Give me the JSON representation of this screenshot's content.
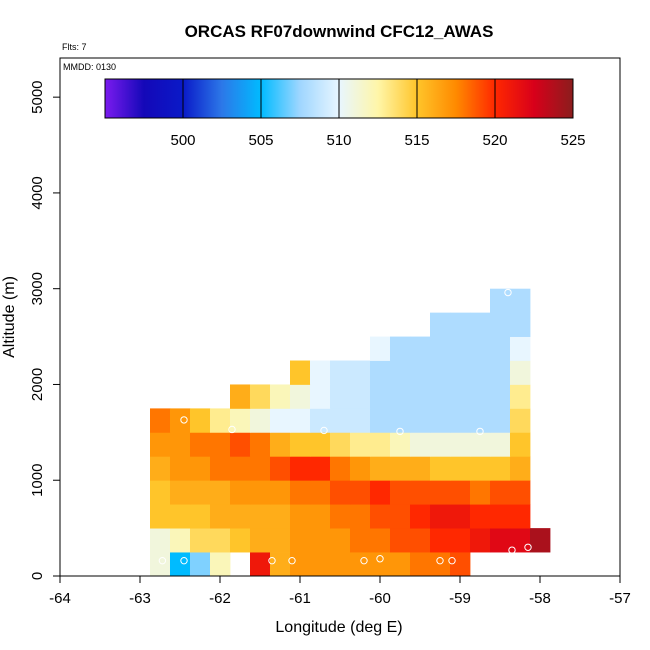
{
  "chart_data": {
    "type": "heatmap",
    "title": "ORCAS RF07downwind CFC12_AWAS",
    "flights_note": "Flts: 7",
    "date_note": "MMDD: 0130",
    "xlabel": "Longitude (deg E)",
    "ylabel": "Altitude (m)",
    "xlim": [
      -64,
      -57
    ],
    "ylim": [
      0,
      5200
    ],
    "x_ticks": [
      -64,
      -63,
      -62,
      -61,
      -60,
      -59,
      -58,
      -57
    ],
    "y_ticks": [
      0,
      1000,
      2000,
      3000,
      4000,
      5000
    ],
    "cell_width_deg": 0.25,
    "cell_height_m": 250,
    "colorbar": {
      "range": [
        495,
        525
      ],
      "ticks": [
        500,
        505,
        510,
        515,
        520,
        525
      ],
      "stops": [
        "#7b1bef",
        "#1408b8",
        "#0a1ac8",
        "#2c78e8",
        "#00bbff",
        "#9fd6ff",
        "#e8f6ff",
        "#fff6a8",
        "#ffc52a",
        "#ff8a00",
        "#ff2800",
        "#d8001a",
        "#8b1d1d"
      ]
    },
    "cells": [
      [
        -62.75,
        0,
        511
      ],
      [
        -62.5,
        0,
        505
      ],
      [
        -62.25,
        0,
        507
      ],
      [
        -62,
        0,
        512
      ],
      [
        -61.5,
        0,
        521
      ],
      [
        -61.25,
        0,
        516
      ],
      [
        -61,
        0,
        517
      ],
      [
        -60.75,
        0,
        517
      ],
      [
        -60.5,
        0,
        517
      ],
      [
        -60.25,
        0,
        517
      ],
      [
        -60,
        0,
        517
      ],
      [
        -59.75,
        0,
        517
      ],
      [
        -59.5,
        0,
        518
      ],
      [
        -59.25,
        0,
        518
      ],
      [
        -59,
        0,
        519
      ],
      [
        -62.75,
        250,
        511
      ],
      [
        -62.5,
        250,
        512
      ],
      [
        -62.25,
        250,
        514
      ],
      [
        -62,
        250,
        514
      ],
      [
        -61.75,
        250,
        515
      ],
      [
        -61.5,
        250,
        516
      ],
      [
        -61.25,
        250,
        516
      ],
      [
        -61,
        250,
        517
      ],
      [
        -60.75,
        250,
        517
      ],
      [
        -60.5,
        250,
        517
      ],
      [
        -60.25,
        250,
        518
      ],
      [
        -60,
        250,
        518
      ],
      [
        -59.75,
        250,
        519
      ],
      [
        -59.5,
        250,
        519
      ],
      [
        -59.25,
        250,
        520
      ],
      [
        -59,
        250,
        520
      ],
      [
        -58.75,
        250,
        521
      ],
      [
        -58.5,
        250,
        522
      ],
      [
        -58.25,
        250,
        522
      ],
      [
        -58,
        250,
        524
      ],
      [
        -62.75,
        500,
        515
      ],
      [
        -62.5,
        500,
        515
      ],
      [
        -62.25,
        500,
        515
      ],
      [
        -62,
        500,
        516
      ],
      [
        -61.75,
        500,
        516
      ],
      [
        -61.5,
        500,
        516
      ],
      [
        -61.25,
        500,
        516
      ],
      [
        -61,
        500,
        517
      ],
      [
        -60.75,
        500,
        517
      ],
      [
        -60.5,
        500,
        518
      ],
      [
        -60.25,
        500,
        518
      ],
      [
        -60,
        500,
        519
      ],
      [
        -59.75,
        500,
        519
      ],
      [
        -59.5,
        500,
        520
      ],
      [
        -59.25,
        500,
        521
      ],
      [
        -59,
        500,
        521
      ],
      [
        -58.75,
        500,
        520
      ],
      [
        -58.5,
        500,
        520
      ],
      [
        -58.25,
        500,
        520
      ],
      [
        -62.75,
        750,
        515
      ],
      [
        -62.5,
        750,
        516
      ],
      [
        -62.25,
        750,
        516
      ],
      [
        -62,
        750,
        516
      ],
      [
        -61.75,
        750,
        517
      ],
      [
        -61.5,
        750,
        517
      ],
      [
        -61.25,
        750,
        517
      ],
      [
        -61,
        750,
        518
      ],
      [
        -60.75,
        750,
        518
      ],
      [
        -60.5,
        750,
        519
      ],
      [
        -60.25,
        750,
        519
      ],
      [
        -60,
        750,
        520
      ],
      [
        -59.75,
        750,
        519
      ],
      [
        -59.5,
        750,
        519
      ],
      [
        -59.25,
        750,
        519
      ],
      [
        -59,
        750,
        519
      ],
      [
        -58.75,
        750,
        518
      ],
      [
        -58.5,
        750,
        519
      ],
      [
        -58.25,
        750,
        519
      ],
      [
        -62.75,
        1000,
        516
      ],
      [
        -62.5,
        1000,
        517
      ],
      [
        -62.25,
        1000,
        517
      ],
      [
        -62,
        1000,
        518
      ],
      [
        -61.75,
        1000,
        518
      ],
      [
        -61.5,
        1000,
        518
      ],
      [
        -61.25,
        1000,
        519
      ],
      [
        -61,
        1000,
        520
      ],
      [
        -60.75,
        1000,
        520
      ],
      [
        -60.5,
        1000,
        518
      ],
      [
        -60.25,
        1000,
        517
      ],
      [
        -60,
        1000,
        516
      ],
      [
        -59.75,
        1000,
        516
      ],
      [
        -59.5,
        1000,
        516
      ],
      [
        -59.25,
        1000,
        515
      ],
      [
        -59,
        1000,
        515
      ],
      [
        -58.75,
        1000,
        515
      ],
      [
        -58.5,
        1000,
        515
      ],
      [
        -58.25,
        1000,
        516
      ],
      [
        -62.75,
        1250,
        517
      ],
      [
        -62.5,
        1250,
        517
      ],
      [
        -62.25,
        1250,
        518
      ],
      [
        -62,
        1250,
        518
      ],
      [
        -61.75,
        1250,
        519
      ],
      [
        -61.5,
        1250,
        518
      ],
      [
        -61.25,
        1250,
        516
      ],
      [
        -61,
        1250,
        515
      ],
      [
        -60.75,
        1250,
        515
      ],
      [
        -60.5,
        1250,
        514
      ],
      [
        -60.25,
        1250,
        513
      ],
      [
        -60,
        1250,
        513
      ],
      [
        -59.75,
        1250,
        512
      ],
      [
        -59.5,
        1250,
        511
      ],
      [
        -59.25,
        1250,
        511
      ],
      [
        -59,
        1250,
        511
      ],
      [
        -58.75,
        1250,
        511
      ],
      [
        -58.5,
        1250,
        511
      ],
      [
        -58.25,
        1250,
        515
      ],
      [
        -62.75,
        1500,
        518
      ],
      [
        -62.5,
        1500,
        517
      ],
      [
        -62.25,
        1500,
        515
      ],
      [
        -62,
        1500,
        513
      ],
      [
        -61.75,
        1500,
        512
      ],
      [
        -61.5,
        1500,
        511
      ],
      [
        -61.25,
        1500,
        510
      ],
      [
        -61,
        1500,
        510
      ],
      [
        -60.75,
        1500,
        509
      ],
      [
        -60.5,
        1500,
        509
      ],
      [
        -60.25,
        1500,
        509
      ],
      [
        -60,
        1500,
        508
      ],
      [
        -59.75,
        1500,
        508
      ],
      [
        -59.5,
        1500,
        508
      ],
      [
        -59.25,
        1500,
        508
      ],
      [
        -59,
        1500,
        508
      ],
      [
        -58.75,
        1500,
        508
      ],
      [
        -58.5,
        1500,
        508
      ],
      [
        -58.25,
        1500,
        514
      ],
      [
        -61.75,
        1750,
        516
      ],
      [
        -61.5,
        1750,
        514
      ],
      [
        -61.25,
        1750,
        512
      ],
      [
        -61,
        1750,
        511
      ],
      [
        -60.75,
        1750,
        510
      ],
      [
        -60.5,
        1750,
        509
      ],
      [
        -60.25,
        1750,
        509
      ],
      [
        -60,
        1750,
        508
      ],
      [
        -59.75,
        1750,
        508
      ],
      [
        -59.5,
        1750,
        508
      ],
      [
        -59.25,
        1750,
        508
      ],
      [
        -59,
        1750,
        508
      ],
      [
        -58.75,
        1750,
        508
      ],
      [
        -58.5,
        1750,
        508
      ],
      [
        -58.25,
        1750,
        513
      ],
      [
        -61,
        2000,
        515
      ],
      [
        -60.75,
        2000,
        510
      ],
      [
        -60.5,
        2000,
        509
      ],
      [
        -60.25,
        2000,
        509
      ],
      [
        -60,
        2000,
        508
      ],
      [
        -59.75,
        2000,
        508
      ],
      [
        -59.5,
        2000,
        508
      ],
      [
        -59.25,
        2000,
        508
      ],
      [
        -59,
        2000,
        508
      ],
      [
        -58.75,
        2000,
        508
      ],
      [
        -58.5,
        2000,
        508
      ],
      [
        -58.25,
        2000,
        511
      ],
      [
        -60,
        2250,
        510
      ],
      [
        -59.75,
        2250,
        508
      ],
      [
        -59.5,
        2250,
        508
      ],
      [
        -59.25,
        2250,
        508
      ],
      [
        -59,
        2250,
        508
      ],
      [
        -58.75,
        2250,
        508
      ],
      [
        -58.5,
        2250,
        508
      ],
      [
        -58.25,
        2250,
        510
      ],
      [
        -59.25,
        2500,
        508
      ],
      [
        -59,
        2500,
        508
      ],
      [
        -58.75,
        2500,
        508
      ],
      [
        -58.5,
        2500,
        508
      ],
      [
        -58.25,
        2500,
        508
      ],
      [
        -58.5,
        2750,
        508
      ],
      [
        -58.25,
        2750,
        508
      ]
    ],
    "sample_points": [
      [
        -62.72,
        160
      ],
      [
        -62.45,
        160
      ],
      [
        -62.45,
        1630
      ],
      [
        -61.85,
        1530
      ],
      [
        -61.35,
        160
      ],
      [
        -61.1,
        160
      ],
      [
        -60.7,
        1520
      ],
      [
        -60.2,
        160
      ],
      [
        -60.0,
        180
      ],
      [
        -59.75,
        1510
      ],
      [
        -59.25,
        160
      ],
      [
        -59.1,
        160
      ],
      [
        -58.75,
        1510
      ],
      [
        -58.4,
        2960
      ],
      [
        -58.35,
        270
      ],
      [
        -58.15,
        300
      ]
    ]
  }
}
